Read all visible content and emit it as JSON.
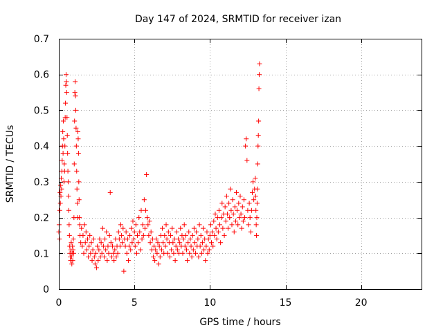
{
  "chart_data": {
    "type": "scatter",
    "title": "Day 147 of 2024, SRMTID for receiver izan",
    "xlabel": "GPS time / hours",
    "ylabel": "SRMTID / TECUs",
    "xlim": [
      0,
      24
    ],
    "ylim": [
      0,
      0.7
    ],
    "xticks": [
      0,
      5,
      10,
      15,
      20
    ],
    "xtick_labels": [
      "0",
      "5",
      "10",
      "15",
      "20"
    ],
    "yticks": [
      0,
      0.1,
      0.2,
      0.3,
      0.4,
      0.5,
      0.6,
      0.7
    ],
    "ytick_labels": [
      "0",
      "0.1",
      "0.2",
      "0.3",
      "0.4",
      "0.5",
      "0.6",
      "0.7"
    ],
    "grid": true,
    "marker": "+",
    "series": [
      {
        "name": "SRMTID",
        "color": "#ff0000",
        "points": [
          [
            0.0,
            0.16
          ],
          [
            0.02,
            0.18
          ],
          [
            0.04,
            0.14
          ],
          [
            0.06,
            0.22
          ],
          [
            0.08,
            0.27
          ],
          [
            0.1,
            0.24
          ],
          [
            0.12,
            0.29
          ],
          [
            0.14,
            0.26
          ],
          [
            0.16,
            0.31
          ],
          [
            0.18,
            0.28
          ],
          [
            0.2,
            0.33
          ],
          [
            0.22,
            0.36
          ],
          [
            0.24,
            0.4
          ],
          [
            0.26,
            0.44
          ],
          [
            0.28,
            0.38
          ],
          [
            0.3,
            0.47
          ],
          [
            0.32,
            0.42
          ],
          [
            0.34,
            0.3
          ],
          [
            0.36,
            0.35
          ],
          [
            0.38,
            0.33
          ],
          [
            0.4,
            0.4
          ],
          [
            0.42,
            0.48
          ],
          [
            0.44,
            0.52
          ],
          [
            0.46,
            0.57
          ],
          [
            0.48,
            0.6
          ],
          [
            0.5,
            0.58
          ],
          [
            0.52,
            0.55
          ],
          [
            0.54,
            0.48
          ],
          [
            0.56,
            0.43
          ],
          [
            0.58,
            0.38
          ],
          [
            0.6,
            0.33
          ],
          [
            0.62,
            0.3
          ],
          [
            0.64,
            0.26
          ],
          [
            0.66,
            0.22
          ],
          [
            0.68,
            0.18
          ],
          [
            0.7,
            0.15
          ],
          [
            0.72,
            0.12
          ],
          [
            0.74,
            0.1
          ],
          [
            0.76,
            0.09
          ],
          [
            0.78,
            0.08
          ],
          [
            0.8,
            0.11
          ],
          [
            0.82,
            0.13
          ],
          [
            0.84,
            0.09
          ],
          [
            0.86,
            0.07
          ],
          [
            0.88,
            0.1
          ],
          [
            0.9,
            0.12
          ],
          [
            0.92,
            0.08
          ],
          [
            0.94,
            0.11
          ],
          [
            0.96,
            0.14
          ],
          [
            0.98,
            0.1
          ],
          [
            1.0,
            0.2
          ],
          [
            1.02,
            0.35
          ],
          [
            1.04,
            0.47
          ],
          [
            1.06,
            0.55
          ],
          [
            1.08,
            0.58
          ],
          [
            1.1,
            0.54
          ],
          [
            1.12,
            0.5
          ],
          [
            1.14,
            0.45
          ],
          [
            1.16,
            0.4
          ],
          [
            1.18,
            0.33
          ],
          [
            1.2,
            0.28
          ],
          [
            1.22,
            0.24
          ],
          [
            1.24,
            0.2
          ],
          [
            1.26,
            0.44
          ],
          [
            1.28,
            0.42
          ],
          [
            1.3,
            0.38
          ],
          [
            1.32,
            0.3
          ],
          [
            1.34,
            0.25
          ],
          [
            1.36,
            0.2
          ],
          [
            1.38,
            0.18
          ],
          [
            1.4,
            0.15
          ],
          [
            1.45,
            0.13
          ],
          [
            1.5,
            0.17
          ],
          [
            1.55,
            0.12
          ],
          [
            1.6,
            0.15
          ],
          [
            1.65,
            0.1
          ],
          [
            1.7,
            0.18
          ],
          [
            1.75,
            0.13
          ],
          [
            1.8,
            0.16
          ],
          [
            1.85,
            0.11
          ],
          [
            1.9,
            0.14
          ],
          [
            1.95,
            0.09
          ],
          [
            2.0,
            0.12
          ],
          [
            2.05,
            0.15
          ],
          [
            2.1,
            0.1
          ],
          [
            2.15,
            0.13
          ],
          [
            2.2,
            0.08
          ],
          [
            2.25,
            0.11
          ],
          [
            2.3,
            0.14
          ],
          [
            2.35,
            0.09
          ],
          [
            2.4,
            0.07
          ],
          [
            2.45,
            0.1
          ],
          [
            2.5,
            0.06
          ],
          [
            2.55,
            0.12
          ],
          [
            2.6,
            0.08
          ],
          [
            2.65,
            0.11
          ],
          [
            2.7,
            0.14
          ],
          [
            2.75,
            0.09
          ],
          [
            2.8,
            0.13
          ],
          [
            2.85,
            0.1
          ],
          [
            2.9,
            0.17
          ],
          [
            2.95,
            0.12
          ],
          [
            3.0,
            0.09
          ],
          [
            3.05,
            0.14
          ],
          [
            3.1,
            0.11
          ],
          [
            3.15,
            0.16
          ],
          [
            3.2,
            0.08
          ],
          [
            3.25,
            0.12
          ],
          [
            3.3,
            0.1
          ],
          [
            3.35,
            0.15
          ],
          [
            3.4,
            0.27
          ],
          [
            3.45,
            0.13
          ],
          [
            3.5,
            0.09
          ],
          [
            3.55,
            0.12
          ],
          [
            3.6,
            0.1
          ],
          [
            3.65,
            0.08
          ],
          [
            3.7,
            0.11
          ],
          [
            3.75,
            0.14
          ],
          [
            3.8,
            0.09
          ],
          [
            3.85,
            0.12
          ],
          [
            3.9,
            0.1
          ],
          [
            3.95,
            0.16
          ],
          [
            4.0,
            0.14
          ],
          [
            4.05,
            0.12
          ],
          [
            4.1,
            0.18
          ],
          [
            4.15,
            0.15
          ],
          [
            4.2,
            0.13
          ],
          [
            4.25,
            0.17
          ],
          [
            4.3,
            0.05
          ],
          [
            4.35,
            0.14
          ],
          [
            4.4,
            0.12
          ],
          [
            4.45,
            0.16
          ],
          [
            4.5,
            0.1
          ],
          [
            4.55,
            0.14
          ],
          [
            4.6,
            0.08
          ],
          [
            4.65,
            0.12
          ],
          [
            4.7,
            0.15
          ],
          [
            4.75,
            0.11
          ],
          [
            4.8,
            0.17
          ],
          [
            4.85,
            0.13
          ],
          [
            4.9,
            0.19
          ],
          [
            4.95,
            0.14
          ],
          [
            5.0,
            0.16
          ],
          [
            5.05,
            0.12
          ],
          [
            5.1,
            0.18
          ],
          [
            5.15,
            0.1
          ],
          [
            5.2,
            0.15
          ],
          [
            5.25,
            0.13
          ],
          [
            5.3,
            0.2
          ],
          [
            5.35,
            0.16
          ],
          [
            5.4,
            0.11
          ],
          [
            5.45,
            0.22
          ],
          [
            5.5,
            0.14
          ],
          [
            5.55,
            0.18
          ],
          [
            5.6,
            0.15
          ],
          [
            5.65,
            0.25
          ],
          [
            5.7,
            0.17
          ],
          [
            5.75,
            0.22
          ],
          [
            5.8,
            0.32
          ],
          [
            5.85,
            0.2
          ],
          [
            5.9,
            0.18
          ],
          [
            5.95,
            0.15
          ],
          [
            6.0,
            0.19
          ],
          [
            6.05,
            0.13
          ],
          [
            6.1,
            0.16
          ],
          [
            6.15,
            0.11
          ],
          [
            6.2,
            0.14
          ],
          [
            6.25,
            0.09
          ],
          [
            6.3,
            0.12
          ],
          [
            6.35,
            0.08
          ],
          [
            6.4,
            0.11
          ],
          [
            6.45,
            0.14
          ],
          [
            6.5,
            0.1
          ],
          [
            6.55,
            0.13
          ],
          [
            6.6,
            0.07
          ],
          [
            6.65,
            0.12
          ],
          [
            6.7,
            0.09
          ],
          [
            6.75,
            0.15
          ],
          [
            6.8,
            0.11
          ],
          [
            6.85,
            0.17
          ],
          [
            6.9,
            0.13
          ],
          [
            6.95,
            0.1
          ],
          [
            7.0,
            0.15
          ],
          [
            7.05,
            0.12
          ],
          [
            7.1,
            0.18
          ],
          [
            7.15,
            0.14
          ],
          [
            7.2,
            0.1
          ],
          [
            7.25,
            0.16
          ],
          [
            7.3,
            0.13
          ],
          [
            7.35,
            0.09
          ],
          [
            7.4,
            0.15
          ],
          [
            7.45,
            0.11
          ],
          [
            7.5,
            0.17
          ],
          [
            7.55,
            0.13
          ],
          [
            7.6,
            0.1
          ],
          [
            7.65,
            0.14
          ],
          [
            7.7,
            0.08
          ],
          [
            7.75,
            0.12
          ],
          [
            7.8,
            0.16
          ],
          [
            7.85,
            0.11
          ],
          [
            7.9,
            0.14
          ],
          [
            7.95,
            0.1
          ],
          [
            8.0,
            0.13
          ],
          [
            8.05,
            0.17
          ],
          [
            8.1,
            0.12
          ],
          [
            8.15,
            0.15
          ],
          [
            8.2,
            0.1
          ],
          [
            8.25,
            0.14
          ],
          [
            8.3,
            0.18
          ],
          [
            8.35,
            0.12
          ],
          [
            8.4,
            0.15
          ],
          [
            8.45,
            0.11
          ],
          [
            8.5,
            0.08
          ],
          [
            8.55,
            0.13
          ],
          [
            8.6,
            0.16
          ],
          [
            8.65,
            0.1
          ],
          [
            8.7,
            0.14
          ],
          [
            8.75,
            0.12
          ],
          [
            8.8,
            0.09
          ],
          [
            8.85,
            0.15
          ],
          [
            8.9,
            0.11
          ],
          [
            8.95,
            0.17
          ],
          [
            9.0,
            0.13
          ],
          [
            9.05,
            0.1
          ],
          [
            9.1,
            0.16
          ],
          [
            9.15,
            0.12
          ],
          [
            9.2,
            0.14
          ],
          [
            9.25,
            0.09
          ],
          [
            9.3,
            0.18
          ],
          [
            9.35,
            0.12
          ],
          [
            9.4,
            0.15
          ],
          [
            9.45,
            0.1
          ],
          [
            9.5,
            0.13
          ],
          [
            9.55,
            0.17
          ],
          [
            9.6,
            0.11
          ],
          [
            9.65,
            0.14
          ],
          [
            9.7,
            0.08
          ],
          [
            9.75,
            0.12
          ],
          [
            9.8,
            0.16
          ],
          [
            9.85,
            0.1
          ],
          [
            9.9,
            0.14
          ],
          [
            9.95,
            0.11
          ],
          [
            10.0,
            0.15
          ],
          [
            10.05,
            0.18
          ],
          [
            10.1,
            0.13
          ],
          [
            10.15,
            0.16
          ],
          [
            10.2,
            0.12
          ],
          [
            10.25,
            0.19
          ],
          [
            10.3,
            0.15
          ],
          [
            10.35,
            0.21
          ],
          [
            10.4,
            0.17
          ],
          [
            10.45,
            0.14
          ],
          [
            10.5,
            0.2
          ],
          [
            10.55,
            0.16
          ],
          [
            10.6,
            0.22
          ],
          [
            10.65,
            0.18
          ],
          [
            10.7,
            0.13
          ],
          [
            10.75,
            0.2
          ],
          [
            10.8,
            0.24
          ],
          [
            10.85,
            0.17
          ],
          [
            10.9,
            0.21
          ],
          [
            10.95,
            0.15
          ],
          [
            11.0,
            0.23
          ],
          [
            11.05,
            0.19
          ],
          [
            11.1,
            0.26
          ],
          [
            11.15,
            0.21
          ],
          [
            11.2,
            0.17
          ],
          [
            11.25,
            0.24
          ],
          [
            11.3,
            0.2
          ],
          [
            11.35,
            0.28
          ],
          [
            11.4,
            0.22
          ],
          [
            11.45,
            0.18
          ],
          [
            11.5,
            0.25
          ],
          [
            11.55,
            0.21
          ],
          [
            11.6,
            0.16
          ],
          [
            11.65,
            0.23
          ],
          [
            11.7,
            0.19
          ],
          [
            11.75,
            0.27
          ],
          [
            11.8,
            0.22
          ],
          [
            11.85,
            0.18
          ],
          [
            11.9,
            0.24
          ],
          [
            11.95,
            0.2
          ],
          [
            12.0,
            0.26
          ],
          [
            12.05,
            0.21
          ],
          [
            12.1,
            0.17
          ],
          [
            12.15,
            0.23
          ],
          [
            12.2,
            0.19
          ],
          [
            12.25,
            0.25
          ],
          [
            12.3,
            0.2
          ],
          [
            12.35,
            0.4
          ],
          [
            12.4,
            0.42
          ],
          [
            12.45,
            0.36
          ],
          [
            12.5,
            0.22
          ],
          [
            12.55,
            0.18
          ],
          [
            12.6,
            0.24
          ],
          [
            12.65,
            0.2
          ],
          [
            12.7,
            0.16
          ],
          [
            12.75,
            0.22
          ],
          [
            12.8,
            0.27
          ],
          [
            12.85,
            0.3
          ],
          [
            12.9,
            0.25
          ],
          [
            12.95,
            0.28
          ],
          [
            13.0,
            0.31
          ],
          [
            13.02,
            0.26
          ],
          [
            13.04,
            0.22
          ],
          [
            13.06,
            0.18
          ],
          [
            13.08,
            0.15
          ],
          [
            13.1,
            0.2
          ],
          [
            13.12,
            0.24
          ],
          [
            13.14,
            0.28
          ],
          [
            13.16,
            0.35
          ],
          [
            13.18,
            0.4
          ],
          [
            13.2,
            0.43
          ],
          [
            13.22,
            0.47
          ],
          [
            13.24,
            0.56
          ],
          [
            13.26,
            0.6
          ],
          [
            13.28,
            0.63
          ]
        ]
      }
    ]
  }
}
